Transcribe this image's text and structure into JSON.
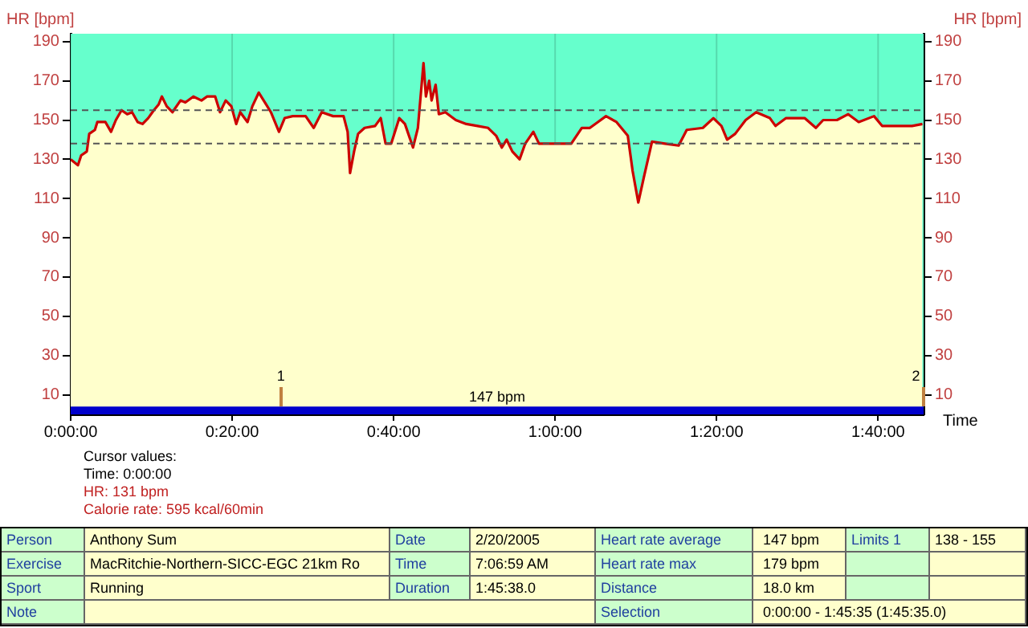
{
  "chart_data": [
    {
      "type": "area",
      "xlabel": "Time",
      "ylabel": "HR [bpm]",
      "y2label": "HR [bpm]",
      "marker": "none",
      "grid": "x",
      "x": [
        0,
        0.015,
        0.0217,
        0.0333,
        0.0383,
        0.05,
        0.055,
        0.0717,
        0.0833,
        0.0933,
        0.105,
        0.1167,
        0.1267,
        0.1383,
        0.1483,
        0.16,
        0.1717,
        0.1817,
        0.1883,
        0.1983,
        0.21,
        0.2267,
        0.2367,
        0.2533,
        0.27,
        0.2817,
        0.2983,
        0.3083,
        0.32,
        0.3317,
        0.3417,
        0.35,
        0.365,
        0.375,
        0.3883,
        0.4033,
        0.4133,
        0.43,
        0.4417,
        0.4583,
        0.485,
        0.5017,
        0.5183,
        0.5417,
        0.5633,
        0.5717,
        0.5767,
        0.585,
        0.5933,
        0.6067,
        0.6283,
        0.64,
        0.65,
        0.6617,
        0.6783,
        0.69,
        0.7067,
        0.7167,
        0.7283,
        0.7333,
        0.74,
        0.745,
        0.7533,
        0.76,
        0.7733,
        0.795,
        0.8167,
        0.84,
        0.8617,
        0.8783,
        0.89,
        0.9,
        0.9117,
        0.9267,
        0.9383,
        0.955,
        0.9667,
        1,
        1.0333,
        1.055,
        1.0717,
        1.0883,
        1.105,
        1.1267,
        1.15,
        1.16,
        1.1717,
        1.1833,
        1.2,
        1.2267,
        1.255,
        1.2717,
        1.305,
        1.3267,
        1.3433,
        1.355,
        1.3717,
        1.3933,
        1.415,
        1.4433,
        1.455,
        1.4767,
        1.515,
        1.5383,
        1.5533,
        1.5817,
        1.605,
        1.6267,
        1.6583,
        1.675,
        1.7033,
        1.7367,
        1.7583
      ],
      "series": [
        {
          "color": "#cc0000",
          "values": [
            130,
            127,
            132,
            134,
            143,
            145,
            149,
            149,
            144,
            150,
            155,
            153,
            154,
            149,
            148,
            151,
            155,
            158,
            162,
            157,
            154,
            160,
            159,
            162,
            160,
            162,
            162,
            154,
            160,
            157,
            148,
            154,
            149,
            157,
            164,
            158,
            154,
            144,
            151,
            152,
            152,
            146,
            154,
            152,
            152,
            144,
            123,
            134,
            143,
            146,
            147,
            151,
            138,
            138,
            151,
            148,
            136,
            146,
            179,
            162,
            170,
            160,
            168,
            153,
            154,
            150,
            148,
            147,
            146,
            142,
            136,
            140,
            134,
            130,
            138,
            144,
            138,
            138,
            138,
            146,
            146,
            149,
            152,
            149,
            142,
            124,
            108,
            121,
            139,
            138,
            137,
            145,
            146,
            151,
            147,
            140,
            143,
            150,
            154,
            151,
            147,
            151,
            151,
            146,
            150,
            150,
            153,
            149,
            152,
            147,
            147,
            147,
            148
          ]
        }
      ],
      "xlim": [
        0,
        1.7606
      ],
      "xticks": [
        {
          "value": 0,
          "label": "0:00:00"
        },
        {
          "value": 0.3333,
          "label": "0:20:00"
        },
        {
          "value": 0.6667,
          "label": "0:40:00"
        },
        {
          "value": 1,
          "label": "1:00:00"
        },
        {
          "value": 1.3333,
          "label": "1:20:00"
        },
        {
          "value": 1.6667,
          "label": "1:40:00"
        }
      ],
      "ylim": [
        0,
        194
      ],
      "yticks": [
        10,
        30,
        50,
        70,
        90,
        110,
        130,
        150,
        170,
        190
      ],
      "y2lim": [
        0,
        194
      ],
      "y2ticks": [
        10,
        30,
        50,
        70,
        90,
        110,
        130,
        150,
        170,
        190
      ],
      "ref_lines": [
        {
          "axis": "y",
          "value": 155,
          "color": "#555555",
          "line_style": "dashed"
        },
        {
          "axis": "y",
          "value": 138,
          "color": "#555555",
          "line_style": "dashed"
        }
      ],
      "bands": [
        {
          "axis": "y",
          "from": 0,
          "to": 194,
          "color": "#66ffcc"
        },
        {
          "axis": "y",
          "from": 0,
          "to": 4,
          "label": "147 bpm",
          "color": "#0000cc"
        }
      ],
      "annotations": [
        "1",
        "2",
        "Cursor values:",
        "Time: 0:00:00",
        "HR: 131 bpm",
        "Calorie rate: 595 kcal/60min"
      ]
    },
    {
      "type": "other",
      "annotations": [
        "Person",
        "Anthony Sum",
        "Date",
        "2/20/2005",
        "Heart rate average",
        "147 bpm",
        "Limits 1",
        "138 - 155",
        "Exercise",
        "MacRitchie-Northern-SICC-EGC 21km Ro",
        "Time",
        "7:06:59 AM",
        "Heart rate max",
        "179 bpm",
        "Sport",
        "Running",
        "Duration",
        "1:45:38.0",
        "Distance",
        "18.0 km",
        "Note",
        "Selection",
        "0:00:00 - 1:45:35 (1:45:35.0)"
      ]
    }
  ]
}
